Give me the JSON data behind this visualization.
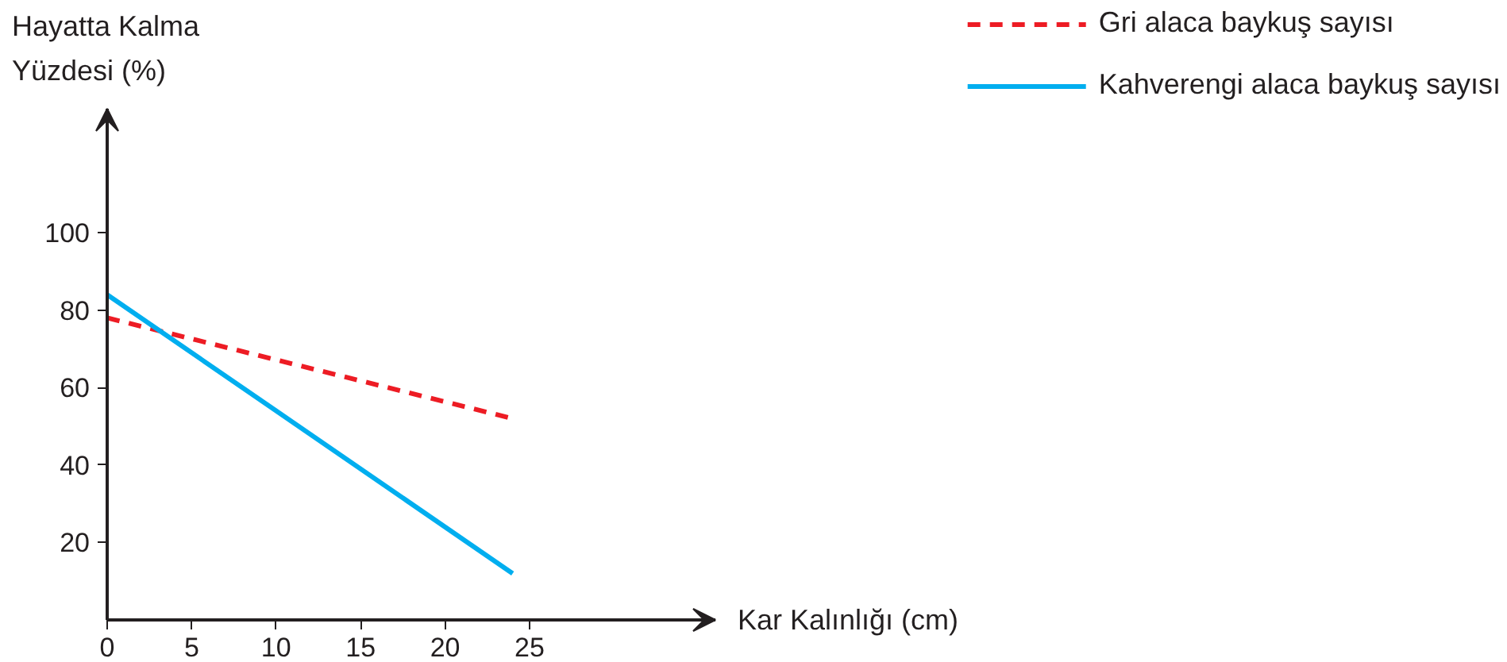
{
  "chart_data": {
    "type": "line",
    "xlabel": "Kar Kalınlığı (cm)",
    "ylabel": "Hayatta Kalma\nYüzdesi (%)",
    "x": [
      0,
      24
    ],
    "series": [
      {
        "name": "Gri alaca baykuş sayısı",
        "color": "#ed1c24",
        "values": [
          78,
          52
        ],
        "line_style": "dashed"
      },
      {
        "name": "Kahverengi alaca baykuş sayısı",
        "color": "#00aeef",
        "values": [
          84,
          12
        ],
        "line_style": "solid"
      }
    ],
    "xlim": [
      0,
      36
    ],
    "ylim": [
      0,
      132
    ],
    "xticks": [
      0,
      5,
      10,
      15,
      20,
      25
    ],
    "yticks": [
      20,
      40,
      60,
      80,
      100
    ],
    "grid": false,
    "legend": "top right",
    "marker": "none"
  }
}
